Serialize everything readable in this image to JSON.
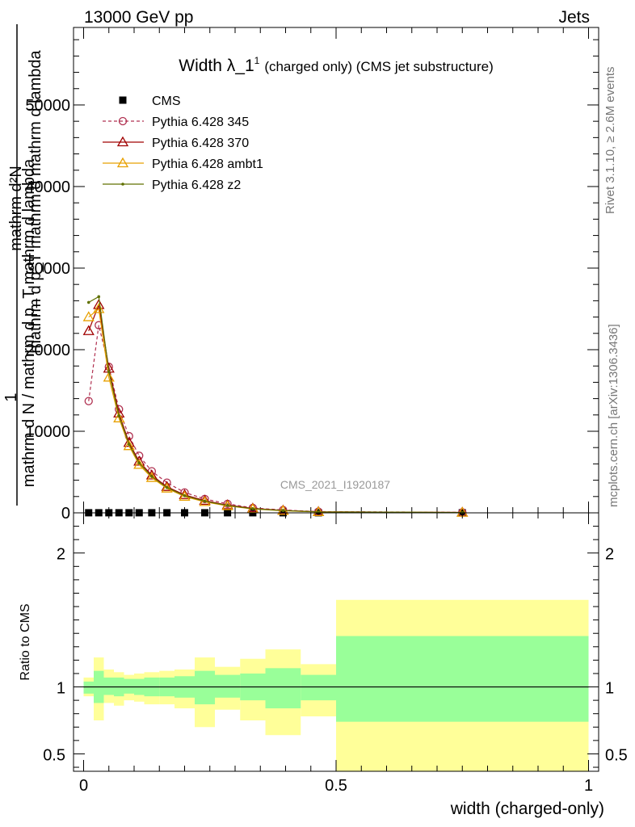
{
  "header": {
    "left": "13000 GeV pp",
    "right": "Jets"
  },
  "side_labels": {
    "rivet": "Rivet 3.1.10, ≥ 2.6M events",
    "mcplots": "mcplots.cern.ch [arXiv:1306.3436]"
  },
  "chart_data": [
    {
      "type": "line",
      "panel": "main",
      "title": "Width λ_1¹ (charged only) (CMS jet substructure)",
      "title_main": "Width λ_1",
      "title_sup": "1",
      "title_suffix": "(charged only) (CMS jet substructure)",
      "ylabel_top": "1",
      "ylabel_lines": [
        "mathrm d²N",
        "mathrm d p_T mathrm d mathrm d lambda"
      ],
      "ylabel_bottom": "mathrm d N / mathrm d p_T mathrm d lambda",
      "watermark": "CMS_2021_I1920187",
      "xlim": [
        -0.02,
        1.02
      ],
      "ylim": [
        0,
        59500
      ],
      "ytick_values": [
        0,
        10000,
        20000,
        30000,
        40000,
        50000
      ],
      "ytick_labels": [
        "0",
        "10000",
        "20000",
        "30000",
        "40000",
        "50000"
      ],
      "legend_position": "top-left",
      "series": [
        {
          "name": "CMS",
          "color": "#000000",
          "marker": "square",
          "x": [
            0.01,
            0.03,
            0.05,
            0.07,
            0.09,
            0.11,
            0.135,
            0.165,
            0.2,
            0.24,
            0.285,
            0.335,
            0.395,
            0.465,
            0.75
          ],
          "y": [
            10,
            10,
            10,
            10,
            10,
            10,
            10,
            10,
            10,
            10,
            10,
            10,
            10,
            10,
            10
          ]
        },
        {
          "name": "Pythia 6.428 345",
          "color": "#b03050",
          "marker": "circle",
          "dashed": true,
          "x": [
            0.01,
            0.03,
            0.05,
            0.07,
            0.09,
            0.11,
            0.135,
            0.165,
            0.2,
            0.24,
            0.285,
            0.335,
            0.395,
            0.465,
            0.75
          ],
          "y": [
            13700,
            23000,
            17900,
            12700,
            9400,
            7000,
            5100,
            3700,
            2500,
            1700,
            1100,
            600,
            350,
            150,
            60
          ]
        },
        {
          "name": "Pythia 6.428 370",
          "color": "#a00000",
          "marker": "triangle",
          "dashed": false,
          "x": [
            0.01,
            0.03,
            0.05,
            0.07,
            0.09,
            0.11,
            0.135,
            0.165,
            0.2,
            0.24,
            0.285,
            0.335,
            0.395,
            0.465,
            0.75
          ],
          "y": [
            22300,
            25500,
            17700,
            12200,
            8600,
            6300,
            4600,
            3200,
            2200,
            1500,
            950,
            550,
            300,
            130,
            50
          ]
        },
        {
          "name": "Pythia 6.428 ambt1",
          "color": "#e8a000",
          "marker": "triangle",
          "dashed": false,
          "x": [
            0.01,
            0.03,
            0.05,
            0.07,
            0.09,
            0.11,
            0.135,
            0.165,
            0.2,
            0.24,
            0.285,
            0.335,
            0.395,
            0.465,
            0.75
          ],
          "y": [
            24000,
            25000,
            16600,
            11600,
            8200,
            5900,
            4300,
            3000,
            2000,
            1350,
            850,
            480,
            260,
            110,
            40
          ]
        },
        {
          "name": "Pythia 6.428 z2",
          "color": "#607000",
          "marker": "dot",
          "dashed": false,
          "x": [
            0.01,
            0.03,
            0.05,
            0.07,
            0.09,
            0.11,
            0.135,
            0.165,
            0.2,
            0.24,
            0.285,
            0.335,
            0.395,
            0.465,
            0.75
          ],
          "y": [
            25800,
            26500,
            17300,
            11900,
            8400,
            6100,
            4450,
            3100,
            2100,
            1420,
            900,
            510,
            280,
            120,
            45
          ]
        }
      ]
    },
    {
      "type": "area",
      "panel": "ratio",
      "ylabel": "Ratio to CMS",
      "xlabel": "width (charged-only)",
      "xlim": [
        -0.02,
        1.02
      ],
      "ylim": [
        0.37,
        2.3
      ],
      "ytick_values": [
        0.5,
        1,
        2
      ],
      "ytick_labels": [
        "0.5",
        "1",
        "2"
      ],
      "xtick_values": [
        0,
        0.5,
        1
      ],
      "xtick_labels": [
        "0",
        "0.5",
        "1"
      ],
      "reference_line": 1,
      "band_colors": {
        "inner": "#99ff99",
        "outer": "#ffff99"
      },
      "bins": [
        {
          "lo": 0.0,
          "hi": 0.02,
          "inner": [
            0.95,
            1.04
          ],
          "outer": [
            0.93,
            1.07
          ]
        },
        {
          "lo": 0.02,
          "hi": 0.04,
          "inner": [
            0.88,
            1.12
          ],
          "outer": [
            0.75,
            1.22
          ]
        },
        {
          "lo": 0.04,
          "hi": 0.06,
          "inner": [
            0.94,
            1.07
          ],
          "outer": [
            0.88,
            1.13
          ]
        },
        {
          "lo": 0.06,
          "hi": 0.08,
          "inner": [
            0.93,
            1.07
          ],
          "outer": [
            0.86,
            1.11
          ]
        },
        {
          "lo": 0.08,
          "hi": 0.1,
          "inner": [
            0.95,
            1.06
          ],
          "outer": [
            0.9,
            1.09
          ]
        },
        {
          "lo": 0.1,
          "hi": 0.12,
          "inner": [
            0.94,
            1.06
          ],
          "outer": [
            0.89,
            1.1
          ]
        },
        {
          "lo": 0.12,
          "hi": 0.15,
          "inner": [
            0.93,
            1.07
          ],
          "outer": [
            0.87,
            1.11
          ]
        },
        {
          "lo": 0.15,
          "hi": 0.18,
          "inner": [
            0.93,
            1.07
          ],
          "outer": [
            0.87,
            1.12
          ]
        },
        {
          "lo": 0.18,
          "hi": 0.22,
          "inner": [
            0.92,
            1.08
          ],
          "outer": [
            0.84,
            1.13
          ]
        },
        {
          "lo": 0.22,
          "hi": 0.26,
          "inner": [
            0.87,
            1.12
          ],
          "outer": [
            0.7,
            1.22
          ]
        },
        {
          "lo": 0.26,
          "hi": 0.31,
          "inner": [
            0.92,
            1.09
          ],
          "outer": [
            0.83,
            1.15
          ]
        },
        {
          "lo": 0.31,
          "hi": 0.36,
          "inner": [
            0.9,
            1.1
          ],
          "outer": [
            0.75,
            1.21
          ]
        },
        {
          "lo": 0.36,
          "hi": 0.43,
          "inner": [
            0.84,
            1.14
          ],
          "outer": [
            0.64,
            1.28
          ]
        },
        {
          "lo": 0.43,
          "hi": 0.5,
          "inner": [
            0.9,
            1.09
          ],
          "outer": [
            0.78,
            1.17
          ]
        },
        {
          "lo": 0.5,
          "hi": 1.0,
          "inner": [
            0.74,
            1.38
          ],
          "outer": [
            0.37,
            1.65
          ]
        }
      ]
    }
  ]
}
